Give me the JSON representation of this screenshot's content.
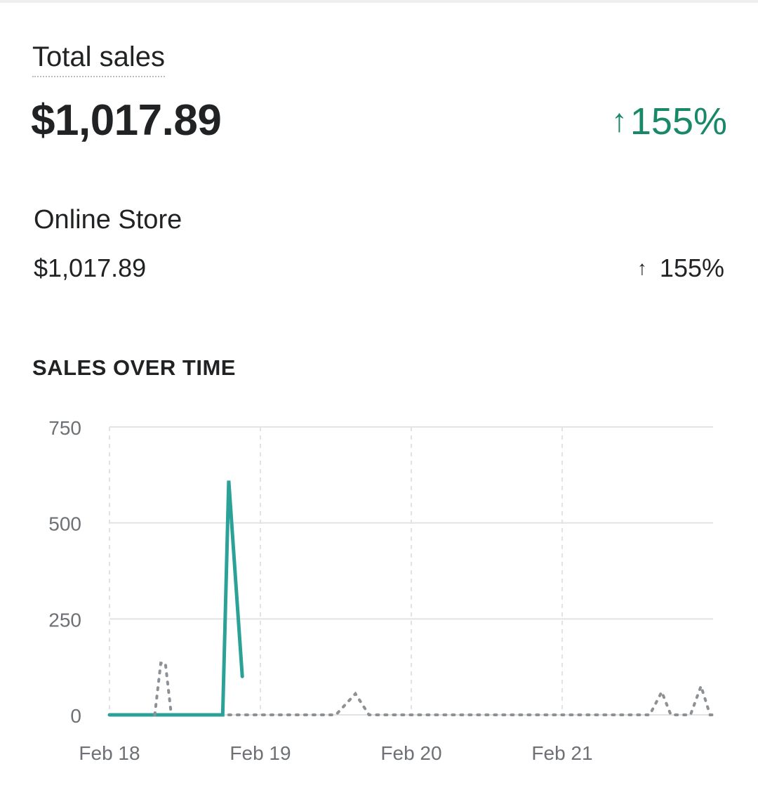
{
  "header": {
    "title": "Total sales",
    "total_value": "$1,017.89",
    "total_change": "155%",
    "change_icon": "arrow-up-icon"
  },
  "channel": {
    "label": "Online Store",
    "value": "$1,017.89",
    "change": "155%"
  },
  "section": {
    "label": "SALES OVER TIME"
  },
  "colors": {
    "accent": "#188869",
    "current_series": "#2ba198",
    "comparison_series": "#8c9196",
    "grid": "#e1e3e5"
  },
  "chart_data": {
    "type": "line",
    "yticks": [
      750,
      500,
      250,
      0
    ],
    "ylim": [
      0,
      750
    ],
    "xticks": [
      {
        "label": "Feb 18",
        "day": 0
      },
      {
        "label": "Feb 19",
        "day": 1
      },
      {
        "label": "Feb 20",
        "day": 2
      },
      {
        "label": "Feb 21",
        "day": 3
      }
    ],
    "xlim": [
      0,
      4
    ],
    "series": [
      {
        "style": "solid",
        "points": [
          [
            0,
            0
          ],
          [
            0.75,
            0
          ],
          [
            0.79,
            610
          ],
          [
            0.88,
            100
          ]
        ]
      },
      {
        "style": "dotted",
        "points": [
          [
            0.79,
            0
          ],
          [
            1.5,
            0
          ],
          [
            1.63,
            55
          ],
          [
            1.72,
            0
          ],
          [
            3.58,
            0
          ],
          [
            3.66,
            60
          ],
          [
            3.72,
            0
          ],
          [
            3.85,
            0
          ],
          [
            3.92,
            75
          ],
          [
            3.98,
            0
          ],
          [
            4.0,
            0
          ]
        ]
      },
      {
        "style": "dotted",
        "points": [
          [
            0.3,
            0
          ],
          [
            0.34,
            135
          ],
          [
            0.37,
            135
          ],
          [
            0.41,
            0
          ]
        ]
      }
    ]
  }
}
